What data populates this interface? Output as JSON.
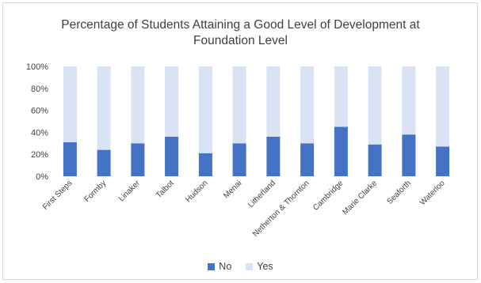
{
  "chart_data": {
    "type": "bar",
    "stacked": true,
    "title_line1": "Percentage of Students Attaining a Good  Level of Development at",
    "title_line2": "Foundation Level",
    "categories": [
      "First Steps",
      "Formby",
      "Linaker",
      "Talbot",
      "Hudson",
      "Menai",
      "Litherland",
      "Netherton & Thornton",
      "Cambridge",
      "Marie Clarke",
      "Seaforth",
      "Waterloo"
    ],
    "series": [
      {
        "name": "No",
        "color": "#4472c4",
        "values": [
          31,
          24,
          30,
          36,
          21,
          30,
          36,
          30,
          45,
          29,
          38,
          27
        ]
      },
      {
        "name": "Yes",
        "color": "#dae3f3",
        "values": [
          69,
          76,
          70,
          64,
          79,
          70,
          64,
          70,
          55,
          71,
          62,
          73
        ]
      }
    ],
    "yticks": [
      "0%",
      "20%",
      "40%",
      "60%",
      "80%",
      "100%"
    ],
    "ylim": [
      0,
      100
    ],
    "legend_position": "bottom"
  }
}
